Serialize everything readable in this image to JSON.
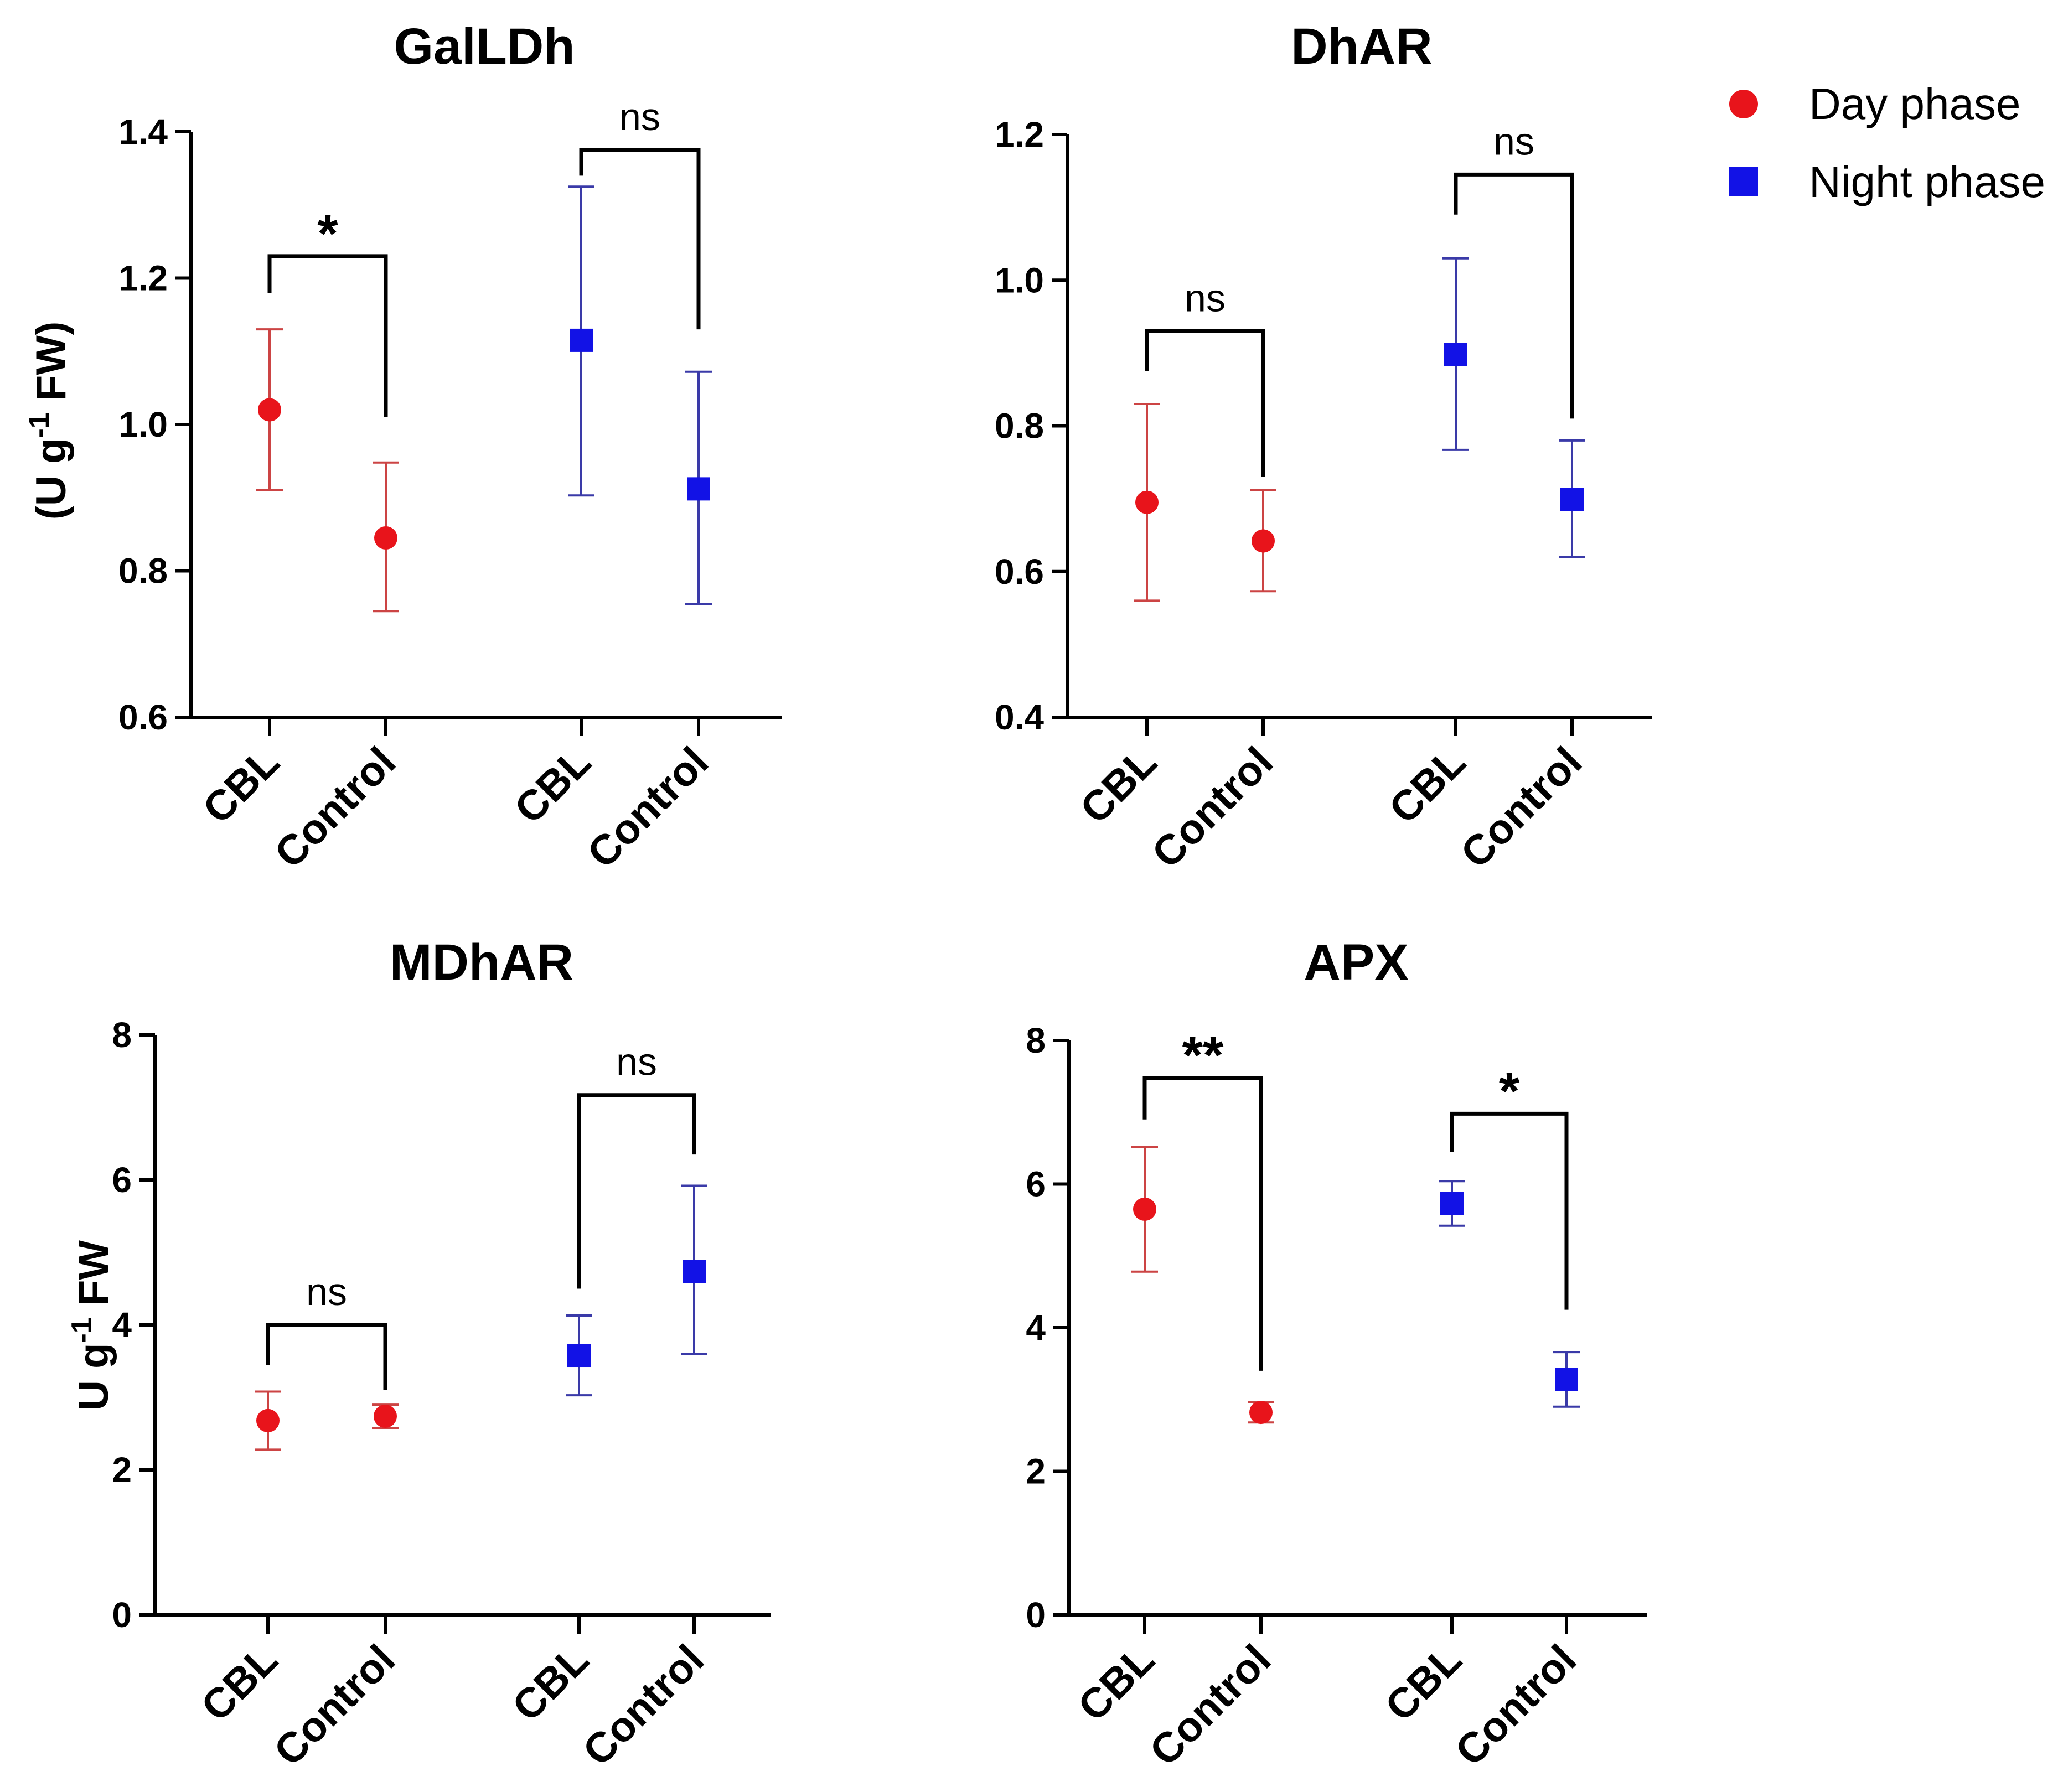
{
  "legend": [
    {
      "name": "Day phase",
      "color": "#e8141b",
      "errColor": "#cc4444",
      "marker": "circle"
    },
    {
      "name": "Night phase",
      "color": "#1212e6",
      "errColor": "#3a3aa8",
      "marker": "square"
    }
  ],
  "chart_data": [
    {
      "type": "scatter",
      "title": "GalLDh",
      "ylabel": "(U g-1 FW)",
      "ylabel_parts": {
        "a": "(U g",
        "sup": "-1",
        "b": " FW)"
      },
      "ylim": [
        0.6,
        1.4
      ],
      "yticks": [
        "0.6",
        "0.8",
        "1.0",
        "1.2",
        "1.4"
      ],
      "categories": [
        "CBL",
        "Control",
        "CBL",
        "Control"
      ],
      "points": [
        {
          "series": "Day phase",
          "category": "CBL",
          "value": 1.02,
          "low": 0.91,
          "high": 1.13
        },
        {
          "series": "Day phase",
          "category": "Control",
          "value": 0.845,
          "low": 0.745,
          "high": 0.948
        },
        {
          "series": "Night phase",
          "category": "CBL",
          "value": 1.115,
          "low": 0.903,
          "high": 1.325
        },
        {
          "series": "Night phase",
          "category": "Control",
          "value": 0.912,
          "low": 0.755,
          "high": 1.072
        }
      ],
      "significance": [
        {
          "label": "*",
          "from": 0,
          "to": 1,
          "y": 1.23,
          "leftEnd": 1.18,
          "rightEnd": 1.01
        },
        {
          "label": "ns",
          "from": 2,
          "to": 3,
          "y": 1.375,
          "leftEnd": 1.34,
          "rightEnd": 1.13
        }
      ]
    },
    {
      "type": "scatter",
      "title": "DhAR",
      "ylabel": "",
      "ylim": [
        0.4,
        1.2
      ],
      "yticks": [
        "0.4",
        "0.6",
        "0.8",
        "1.0",
        "1.2"
      ],
      "categories": [
        "CBL",
        "Control",
        "CBL",
        "Control"
      ],
      "points": [
        {
          "series": "Day phase",
          "category": "CBL",
          "value": 0.695,
          "low": 0.56,
          "high": 0.83
        },
        {
          "series": "Day phase",
          "category": "Control",
          "value": 0.642,
          "low": 0.573,
          "high": 0.712
        },
        {
          "series": "Night phase",
          "category": "CBL",
          "value": 0.898,
          "low": 0.767,
          "high": 1.03
        },
        {
          "series": "Night phase",
          "category": "Control",
          "value": 0.699,
          "low": 0.62,
          "high": 0.78
        }
      ],
      "significance": [
        {
          "label": "ns",
          "from": 0,
          "to": 1,
          "y": 0.93,
          "leftEnd": 0.875,
          "rightEnd": 0.73
        },
        {
          "label": "ns",
          "from": 2,
          "to": 3,
          "y": 1.145,
          "leftEnd": 1.09,
          "rightEnd": 0.81
        }
      ]
    },
    {
      "type": "scatter",
      "title": "MDhAR",
      "ylabel": "U g-1 FW",
      "ylabel_parts": {
        "a": "U g",
        "sup": "-1",
        "b": " FW"
      },
      "ylim": [
        0,
        8
      ],
      "yticks": [
        "0",
        "2",
        "4",
        "6",
        "8"
      ],
      "categories": [
        "CBL",
        "Control",
        "CBL",
        "Control"
      ],
      "points": [
        {
          "series": "Day phase",
          "category": "CBL",
          "value": 2.68,
          "low": 2.28,
          "high": 3.08
        },
        {
          "series": "Day phase",
          "category": "Control",
          "value": 2.74,
          "low": 2.58,
          "high": 2.9
        },
        {
          "series": "Night phase",
          "category": "CBL",
          "value": 3.58,
          "low": 3.03,
          "high": 4.13
        },
        {
          "series": "Night phase",
          "category": "Control",
          "value": 4.74,
          "low": 3.6,
          "high": 5.92
        }
      ],
      "significance": [
        {
          "label": "ns",
          "from": 0,
          "to": 1,
          "y": 4.0,
          "leftEnd": 3.45,
          "rightEnd": 3.1
        },
        {
          "label": "ns",
          "from": 2,
          "to": 3,
          "y": 7.17,
          "leftEnd": 4.5,
          "rightEnd": 6.35
        }
      ]
    },
    {
      "type": "scatter",
      "title": "APX",
      "ylabel": "",
      "ylim": [
        0,
        8
      ],
      "yticks": [
        "0",
        "2",
        "4",
        "6",
        "8"
      ],
      "categories": [
        "CBL",
        "Control",
        "CBL",
        "Control"
      ],
      "points": [
        {
          "series": "Day phase",
          "category": "CBL",
          "value": 5.65,
          "low": 4.78,
          "high": 6.52
        },
        {
          "series": "Day phase",
          "category": "Control",
          "value": 2.82,
          "low": 2.68,
          "high": 2.96
        },
        {
          "series": "Night phase",
          "category": "CBL",
          "value": 5.73,
          "low": 5.42,
          "high": 6.04
        },
        {
          "series": "Night phase",
          "category": "Control",
          "value": 3.28,
          "low": 2.9,
          "high": 3.66
        }
      ],
      "significance": [
        {
          "label": "**",
          "from": 0,
          "to": 1,
          "y": 7.48,
          "leftEnd": 6.9,
          "rightEnd": 3.4
        },
        {
          "label": "*",
          "from": 2,
          "to": 3,
          "y": 6.98,
          "leftEnd": 6.45,
          "rightEnd": 4.25
        }
      ]
    }
  ]
}
